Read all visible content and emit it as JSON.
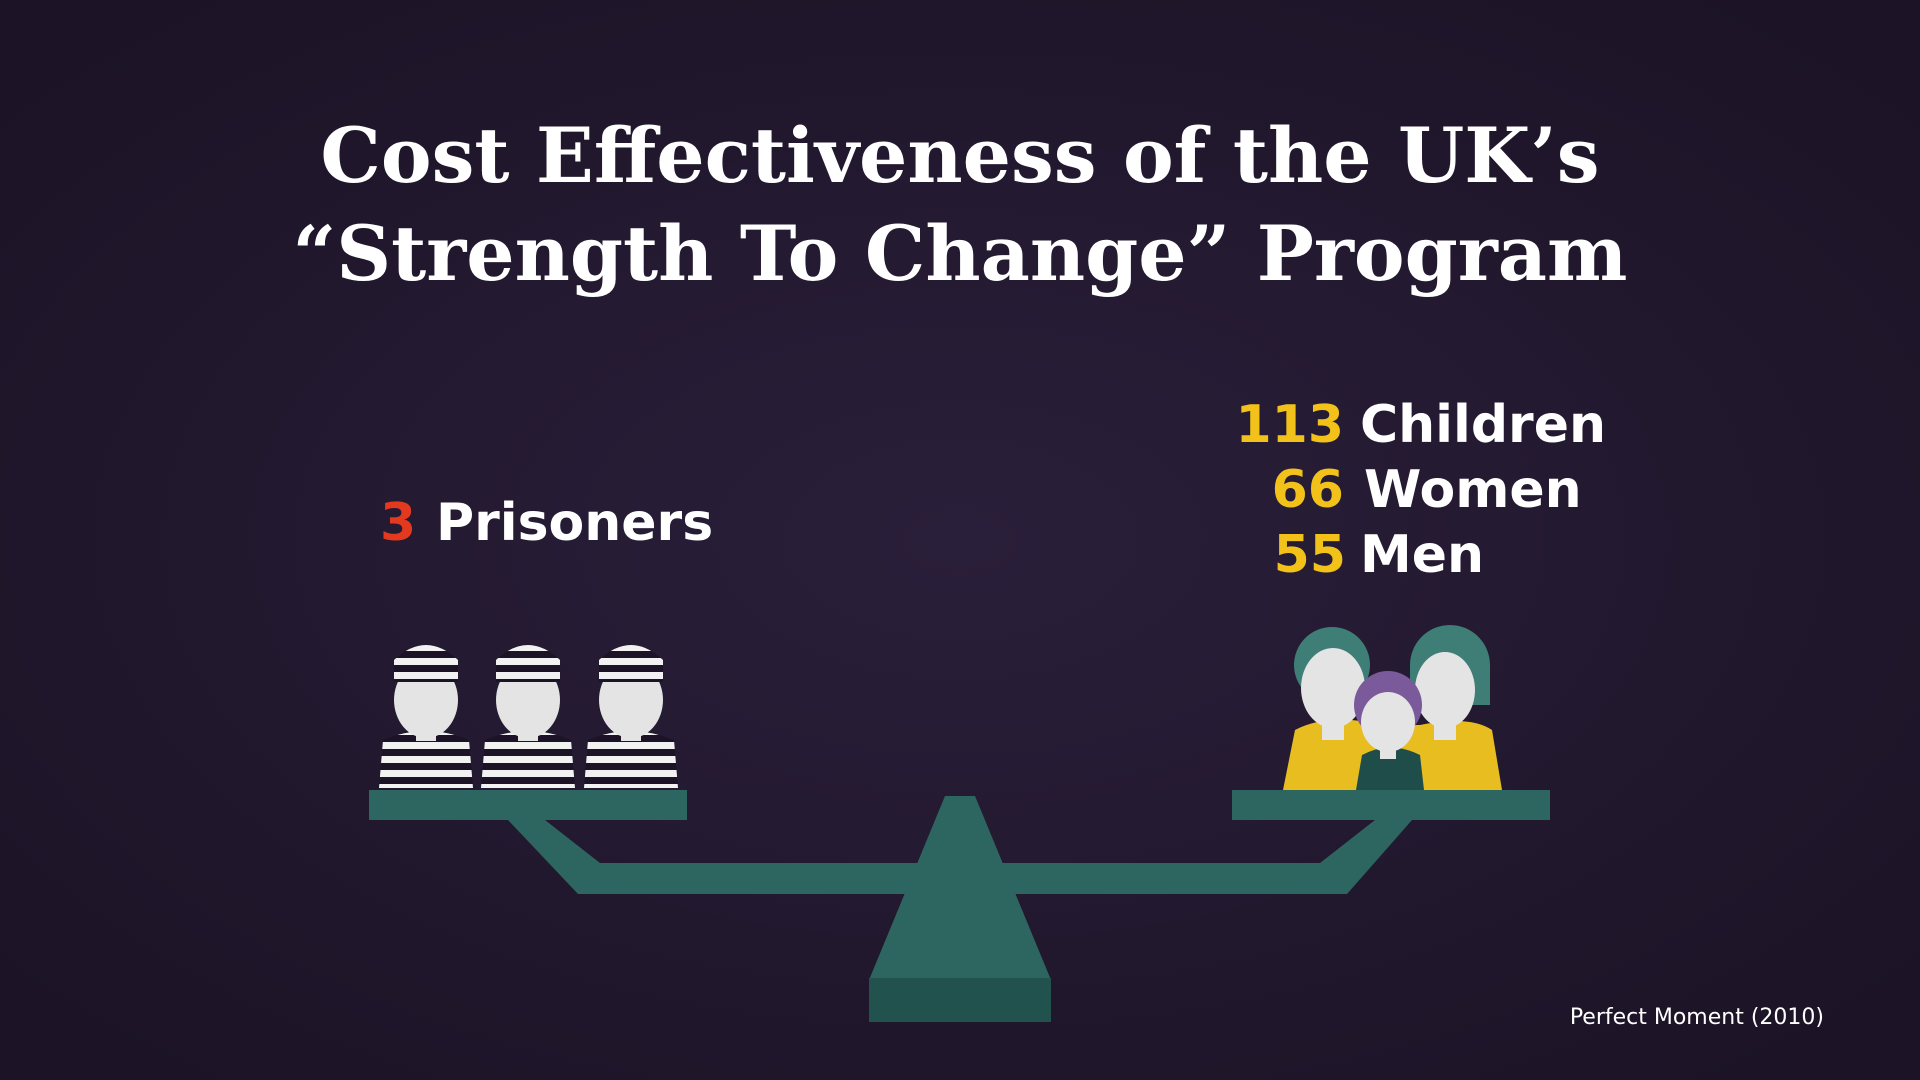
{
  "title": [
    "Cost Effectiveness of the UK’s",
    "“Strength To Change” Program"
  ],
  "left": {
    "count": 3,
    "label": "Prisoners"
  },
  "right": [
    {
      "count": 113,
      "label": "Children"
    },
    {
      "count": 66,
      "label": "Women"
    },
    {
      "count": 55,
      "label": "Men"
    }
  ],
  "source": "Perfect Moment (2010)"
}
